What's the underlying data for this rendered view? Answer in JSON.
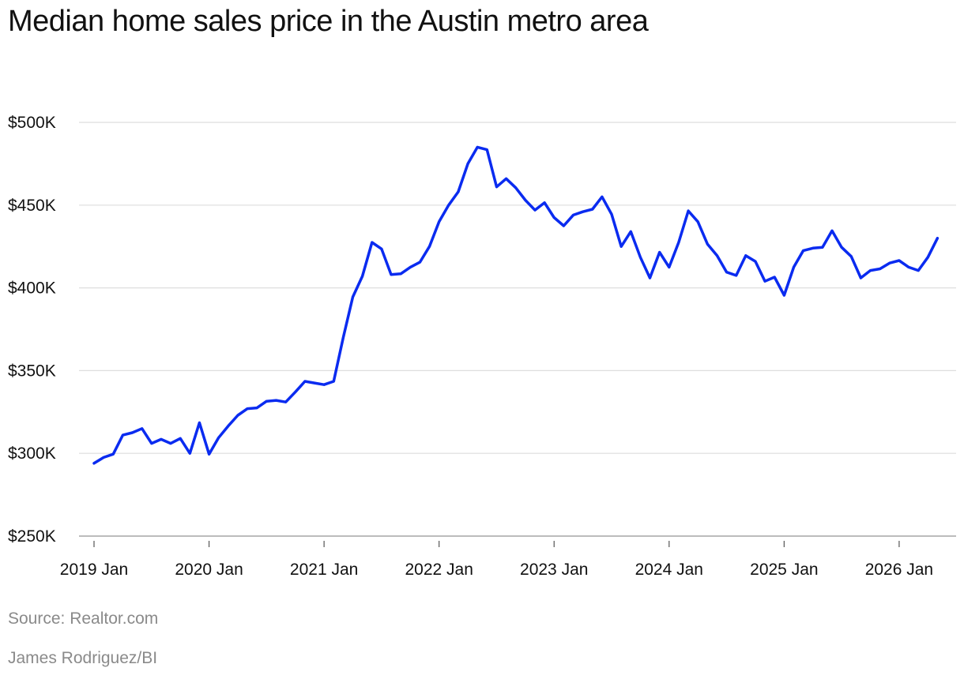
{
  "title": "Median home sales price in the Austin metro area",
  "source": "Source: Realtor.com",
  "credit": "James Rodriguez/BI",
  "colors": {
    "line": "#0a2bf0",
    "grid": "#dedede",
    "axis": "#999999"
  },
  "chart_data": {
    "type": "line",
    "title": "Median home sales price in the Austin metro area",
    "xlabel": "",
    "ylabel": "",
    "x_start": "2019-01",
    "x_frequency": "monthly",
    "ylim": [
      250000,
      500000
    ],
    "yticks": [
      250000,
      300000,
      350000,
      400000,
      450000,
      500000
    ],
    "ytick_labels": [
      "$250K",
      "$300K",
      "$350K",
      "$400K",
      "$450K",
      "$500K"
    ],
    "xtick_labels": [
      "2019 Jan",
      "2020 Jan",
      "2021 Jan",
      "2022 Jan",
      "2023 Jan",
      "2024 Jan",
      "2025 Jan",
      "2026 Jan"
    ],
    "grid": true,
    "legend": "none",
    "series": [
      {
        "values": [
          294000,
          297500,
          299500,
          311000,
          312500,
          315000,
          306000,
          308500,
          306000,
          309000,
          300000,
          318500,
          299500,
          309500,
          316500,
          323000,
          327000,
          327500,
          331500,
          332000,
          331000,
          337000,
          343500,
          342500,
          341500,
          343500,
          370000,
          394500,
          407000,
          427500,
          423500,
          408000,
          408500,
          412500,
          415500,
          425000,
          440000,
          450000,
          458000,
          475000,
          485000,
          483500,
          461000,
          466000,
          460500,
          453000,
          447000,
          451500,
          442500,
          437500,
          444000,
          446000,
          447500,
          455000,
          444500,
          425000,
          434000,
          418500,
          406000,
          421500,
          412500,
          427500,
          446500,
          440000,
          426500,
          419500,
          409500,
          407500,
          419500,
          416000,
          404000,
          406500,
          395500,
          412500,
          422500,
          424000,
          424500,
          434500,
          424500,
          419000,
          406000,
          410500,
          411500,
          415000,
          416500,
          412500,
          410500,
          418500,
          430000
        ]
      }
    ]
  }
}
